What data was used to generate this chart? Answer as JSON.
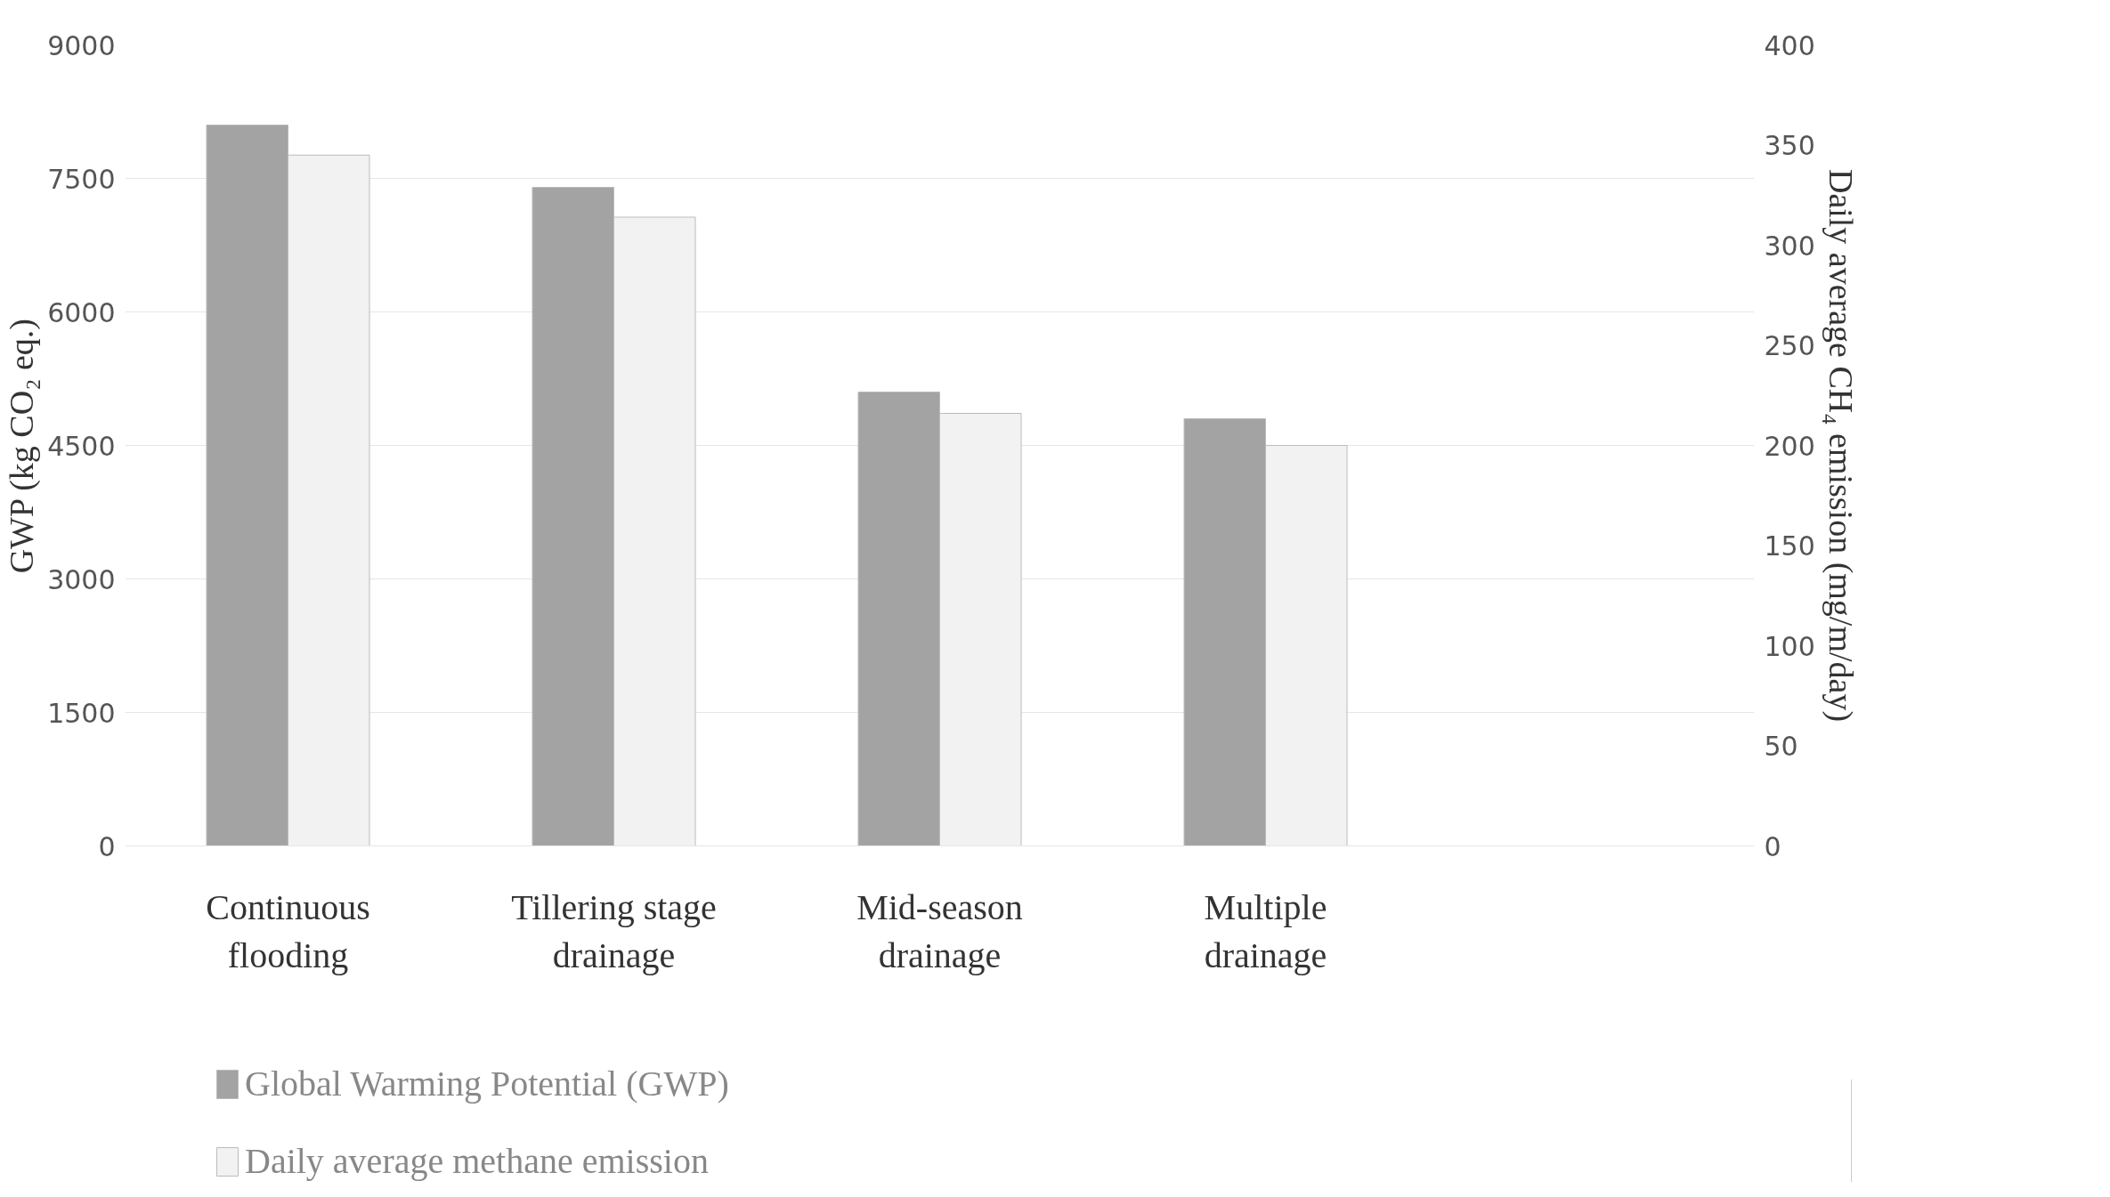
{
  "chart_data": {
    "type": "bar",
    "categories": [
      "Continuous\nflooding",
      "Tillering stage\ndrainage",
      "Mid-season\ndrainage",
      "Multiple\ndrainage",
      null
    ],
    "series": [
      {
        "name": "Global Warming Potential (GWP)",
        "color": "#a3a3a3",
        "values": [
          8100,
          7400,
          5100,
          4800,
          null
        ]
      },
      {
        "name": "Daily average methane emission",
        "color": "#f2f2f2",
        "values": [
          345,
          314,
          216,
          200,
          null
        ],
        "axis": "y2"
      }
    ],
    "ylabel": "GWP (kg CO₂ eq.)",
    "y2label": "Daily average CH₄ emission (mg/m/day)",
    "ylim": [
      0,
      9000
    ],
    "yticks": [
      0,
      1500,
      3000,
      4500,
      6000,
      7500,
      9000
    ],
    "y2lim": [
      0,
      400
    ],
    "y2ticks": [
      0,
      50,
      100,
      150,
      200,
      250,
      300,
      350,
      400
    ],
    "grid": "y",
    "legend": "bottom left"
  }
}
